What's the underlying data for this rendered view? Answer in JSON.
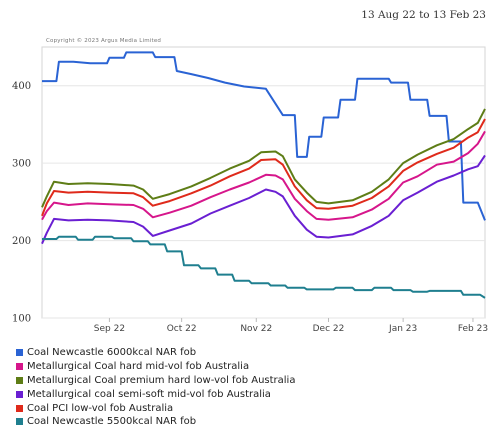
{
  "header": {
    "date_range": "13 Aug 22 to 13 Feb 23"
  },
  "copyright": "Copyright © 2023 Argus Media Limited",
  "chart_data": {
    "type": "line",
    "title": "",
    "xlabel": "",
    "ylabel": "",
    "ylim": [
      100,
      450
    ],
    "yticks": [
      100,
      200,
      300,
      400
    ],
    "x_ticks": [
      "Sep 22",
      "Oct 22",
      "Nov 22",
      "Dec 22",
      "Jan 23",
      "Feb 23"
    ],
    "x_tick_dates": [
      "2022-09-10",
      "2022-10-10",
      "2022-11-10",
      "2022-12-10",
      "2023-01-10",
      "2023-02-08"
    ],
    "x_range": [
      "2022-08-13",
      "2023-02-13"
    ],
    "grid": "horizontal",
    "legend_position": "bottom",
    "series": [
      {
        "name": "Coal Newcastle 6000kcal NAR fob",
        "color": "#2a63d4",
        "points": [
          [
            "2022-08-13",
            406
          ],
          [
            "2022-08-19",
            406
          ],
          [
            "2022-08-20",
            431
          ],
          [
            "2022-08-26",
            431
          ],
          [
            "2022-09-02",
            429
          ],
          [
            "2022-09-09",
            429
          ],
          [
            "2022-09-10",
            436
          ],
          [
            "2022-09-16",
            436
          ],
          [
            "2022-09-17",
            443
          ],
          [
            "2022-09-28",
            443
          ],
          [
            "2022-09-29",
            437
          ],
          [
            "2022-10-07",
            437
          ],
          [
            "2022-10-08",
            419
          ],
          [
            "2022-10-14",
            415
          ],
          [
            "2022-10-21",
            410
          ],
          [
            "2022-10-28",
            404
          ],
          [
            "2022-11-05",
            399
          ],
          [
            "2022-11-14",
            396
          ],
          [
            "2022-11-21",
            362
          ],
          [
            "2022-11-26",
            362
          ],
          [
            "2022-11-27",
            308
          ],
          [
            "2022-12-01",
            308
          ],
          [
            "2022-12-02",
            334
          ],
          [
            "2022-12-07",
            334
          ],
          [
            "2022-12-08",
            359
          ],
          [
            "2022-12-14",
            359
          ],
          [
            "2022-12-15",
            382
          ],
          [
            "2022-12-21",
            382
          ],
          [
            "2022-12-22",
            409
          ],
          [
            "2023-01-04",
            409
          ],
          [
            "2023-01-05",
            404
          ],
          [
            "2023-01-12",
            404
          ],
          [
            "2023-01-13",
            382
          ],
          [
            "2023-01-20",
            382
          ],
          [
            "2023-01-21",
            361
          ],
          [
            "2023-01-28",
            361
          ],
          [
            "2023-01-29",
            328
          ],
          [
            "2023-02-03",
            328
          ],
          [
            "2023-02-04",
            249
          ],
          [
            "2023-02-10",
            249
          ],
          [
            "2023-02-13",
            226
          ]
        ]
      },
      {
        "name": "Metallurgical Coal hard mid-vol fob Australia",
        "color": "#d6168b",
        "points": [
          [
            "2022-08-13",
            227
          ],
          [
            "2022-08-15",
            238
          ],
          [
            "2022-08-18",
            249
          ],
          [
            "2022-08-24",
            246
          ],
          [
            "2022-09-01",
            248
          ],
          [
            "2022-09-10",
            247
          ],
          [
            "2022-09-20",
            246
          ],
          [
            "2022-09-24",
            241
          ],
          [
            "2022-09-28",
            230
          ],
          [
            "2022-10-05",
            236
          ],
          [
            "2022-10-14",
            245
          ],
          [
            "2022-10-22",
            256
          ],
          [
            "2022-10-30",
            266
          ],
          [
            "2022-11-07",
            275
          ],
          [
            "2022-11-14",
            285
          ],
          [
            "2022-11-18",
            284
          ],
          [
            "2022-11-21",
            279
          ],
          [
            "2022-11-26",
            254
          ],
          [
            "2022-12-01",
            238
          ],
          [
            "2022-12-05",
            228
          ],
          [
            "2022-12-10",
            227
          ],
          [
            "2022-12-20",
            230
          ],
          [
            "2022-12-28",
            240
          ],
          [
            "2023-01-04",
            254
          ],
          [
            "2023-01-10",
            275
          ],
          [
            "2023-01-16",
            283
          ],
          [
            "2023-01-24",
            298
          ],
          [
            "2023-01-31",
            302
          ],
          [
            "2023-02-06",
            313
          ],
          [
            "2023-02-10",
            325
          ],
          [
            "2023-02-13",
            341
          ]
        ]
      },
      {
        "name": "Metallurgical Coal premium hard low-vol fob Australia",
        "color": "#5e7d16",
        "points": [
          [
            "2022-08-13",
            243
          ],
          [
            "2022-08-15",
            257
          ],
          [
            "2022-08-18",
            276
          ],
          [
            "2022-08-24",
            273
          ],
          [
            "2022-09-01",
            274
          ],
          [
            "2022-09-10",
            273
          ],
          [
            "2022-09-20",
            271
          ],
          [
            "2022-09-24",
            266
          ],
          [
            "2022-09-28",
            254
          ],
          [
            "2022-10-05",
            260
          ],
          [
            "2022-10-14",
            270
          ],
          [
            "2022-10-22",
            281
          ],
          [
            "2022-10-30",
            293
          ],
          [
            "2022-11-07",
            303
          ],
          [
            "2022-11-12",
            314
          ],
          [
            "2022-11-18",
            315
          ],
          [
            "2022-11-21",
            309
          ],
          [
            "2022-11-26",
            279
          ],
          [
            "2022-12-01",
            262
          ],
          [
            "2022-12-05",
            250
          ],
          [
            "2022-12-10",
            248
          ],
          [
            "2022-12-20",
            252
          ],
          [
            "2022-12-28",
            263
          ],
          [
            "2023-01-04",
            279
          ],
          [
            "2023-01-10",
            300
          ],
          [
            "2023-01-16",
            311
          ],
          [
            "2023-01-24",
            323
          ],
          [
            "2023-01-31",
            331
          ],
          [
            "2023-02-06",
            344
          ],
          [
            "2023-02-10",
            352
          ],
          [
            "2023-02-13",
            370
          ]
        ]
      },
      {
        "name": "Metallurgical coal semi-soft mid-vol fob Australia",
        "color": "#6a1fd2",
        "points": [
          [
            "2022-08-13",
            196
          ],
          [
            "2022-08-15",
            210
          ],
          [
            "2022-08-18",
            228
          ],
          [
            "2022-08-24",
            226
          ],
          [
            "2022-09-01",
            227
          ],
          [
            "2022-09-10",
            226
          ],
          [
            "2022-09-20",
            224
          ],
          [
            "2022-09-24",
            218
          ],
          [
            "2022-09-28",
            206
          ],
          [
            "2022-10-05",
            213
          ],
          [
            "2022-10-14",
            222
          ],
          [
            "2022-10-22",
            235
          ],
          [
            "2022-10-30",
            245
          ],
          [
            "2022-11-07",
            255
          ],
          [
            "2022-11-14",
            266
          ],
          [
            "2022-11-18",
            263
          ],
          [
            "2022-11-21",
            257
          ],
          [
            "2022-11-26",
            232
          ],
          [
            "2022-12-01",
            214
          ],
          [
            "2022-12-05",
            205
          ],
          [
            "2022-12-10",
            204
          ],
          [
            "2022-12-20",
            208
          ],
          [
            "2022-12-28",
            219
          ],
          [
            "2023-01-04",
            232
          ],
          [
            "2023-01-10",
            252
          ],
          [
            "2023-01-16",
            262
          ],
          [
            "2023-01-24",
            276
          ],
          [
            "2023-01-31",
            284
          ],
          [
            "2023-02-06",
            292
          ],
          [
            "2023-02-10",
            296
          ],
          [
            "2023-02-13",
            310
          ]
        ]
      },
      {
        "name": "Coal PCI low-vol fob Australia",
        "color": "#df2a1b",
        "points": [
          [
            "2022-08-13",
            232
          ],
          [
            "2022-08-15",
            248
          ],
          [
            "2022-08-18",
            264
          ],
          [
            "2022-08-24",
            262
          ],
          [
            "2022-09-01",
            263
          ],
          [
            "2022-09-10",
            262
          ],
          [
            "2022-09-20",
            261
          ],
          [
            "2022-09-24",
            256
          ],
          [
            "2022-09-28",
            245
          ],
          [
            "2022-10-05",
            251
          ],
          [
            "2022-10-14",
            261
          ],
          [
            "2022-10-22",
            271
          ],
          [
            "2022-10-30",
            283
          ],
          [
            "2022-11-07",
            293
          ],
          [
            "2022-11-12",
            304
          ],
          [
            "2022-11-18",
            305
          ],
          [
            "2022-11-21",
            298
          ],
          [
            "2022-11-26",
            270
          ],
          [
            "2022-12-01",
            252
          ],
          [
            "2022-12-05",
            242
          ],
          [
            "2022-12-10",
            241
          ],
          [
            "2022-12-20",
            245
          ],
          [
            "2022-12-28",
            255
          ],
          [
            "2023-01-04",
            270
          ],
          [
            "2023-01-10",
            290
          ],
          [
            "2023-01-16",
            301
          ],
          [
            "2023-01-24",
            312
          ],
          [
            "2023-01-31",
            320
          ],
          [
            "2023-02-06",
            333
          ],
          [
            "2023-02-10",
            340
          ],
          [
            "2023-02-13",
            357
          ]
        ]
      },
      {
        "name": "Coal Newcastle 5500kcal NAR fob",
        "color": "#1f7f8f",
        "points": [
          [
            "2022-08-13",
            202
          ],
          [
            "2022-08-19",
            202
          ],
          [
            "2022-08-20",
            205
          ],
          [
            "2022-08-27",
            205
          ],
          [
            "2022-08-28",
            201
          ],
          [
            "2022-09-03",
            201
          ],
          [
            "2022-09-04",
            205
          ],
          [
            "2022-09-11",
            205
          ],
          [
            "2022-09-12",
            203
          ],
          [
            "2022-09-19",
            203
          ],
          [
            "2022-09-20",
            199
          ],
          [
            "2022-09-26",
            199
          ],
          [
            "2022-09-27",
            195
          ],
          [
            "2022-10-03",
            195
          ],
          [
            "2022-10-04",
            186
          ],
          [
            "2022-10-10",
            186
          ],
          [
            "2022-10-11",
            168
          ],
          [
            "2022-10-17",
            168
          ],
          [
            "2022-10-18",
            164
          ],
          [
            "2022-10-24",
            164
          ],
          [
            "2022-10-25",
            156
          ],
          [
            "2022-10-31",
            156
          ],
          [
            "2022-11-01",
            148
          ],
          [
            "2022-11-07",
            148
          ],
          [
            "2022-11-08",
            145
          ],
          [
            "2022-11-15",
            145
          ],
          [
            "2022-11-16",
            142
          ],
          [
            "2022-11-22",
            142
          ],
          [
            "2022-11-23",
            139
          ],
          [
            "2022-11-30",
            139
          ],
          [
            "2022-12-01",
            137
          ],
          [
            "2022-12-12",
            137
          ],
          [
            "2022-12-13",
            139
          ],
          [
            "2022-12-20",
            139
          ],
          [
            "2022-12-21",
            136
          ],
          [
            "2022-12-28",
            136
          ],
          [
            "2022-12-29",
            139
          ],
          [
            "2023-01-05",
            139
          ],
          [
            "2023-01-06",
            136
          ],
          [
            "2023-01-13",
            136
          ],
          [
            "2023-01-14",
            134
          ],
          [
            "2023-01-20",
            134
          ],
          [
            "2023-01-21",
            135
          ],
          [
            "2023-02-03",
            135
          ],
          [
            "2023-02-04",
            130
          ],
          [
            "2023-02-11",
            130
          ],
          [
            "2023-02-13",
            126
          ]
        ]
      }
    ]
  },
  "legend": [
    {
      "label": "Coal Newcastle 6000kcal NAR fob",
      "color": "#2a63d4"
    },
    {
      "label": "Metallurgical Coal hard mid-vol fob Australia",
      "color": "#d6168b"
    },
    {
      "label": "Metallurgical Coal premium hard low-vol fob Australia",
      "color": "#5e7d16"
    },
    {
      "label": "Metallurgical coal semi-soft mid-vol fob Australia",
      "color": "#6a1fd2"
    },
    {
      "label": "Coal PCI low-vol fob Australia",
      "color": "#df2a1b"
    },
    {
      "label": "Coal Newcastle 5500kcal NAR fob",
      "color": "#1f7f8f"
    }
  ]
}
